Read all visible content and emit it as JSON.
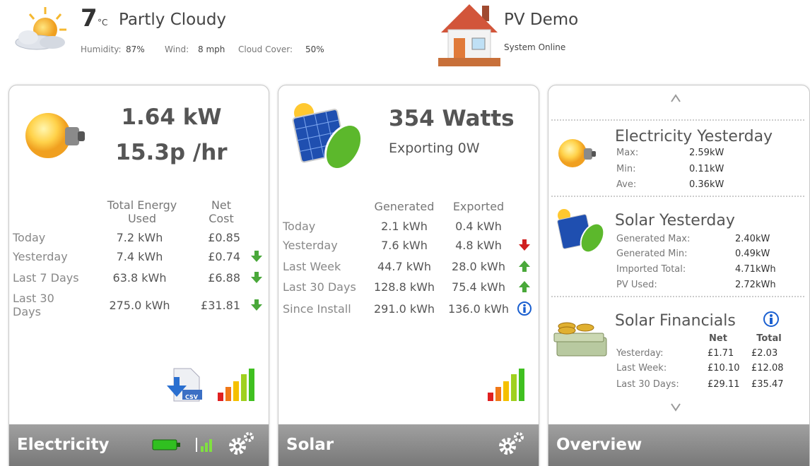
{
  "weather": {
    "temperature": "7",
    "unit": "°C",
    "condition": "Partly Cloudy",
    "humidity": {
      "label": "Humidity:",
      "value": "87%"
    },
    "wind": {
      "label": "Wind:",
      "value": "8 mph"
    },
    "cloud_cover": {
      "label": "Cloud Cover:",
      "value": "50%"
    }
  },
  "system": {
    "name": "PV Demo",
    "status": "System Online"
  },
  "electricity": {
    "power": "1.64 kW",
    "cost_rate": "15.3p /hr",
    "headers": [
      "Total Energy Used",
      "Net Cost"
    ],
    "rows": [
      [
        "Today",
        "7.2 kWh",
        "£0.85"
      ],
      [
        "Yesterday",
        "7.4 kWh",
        "£0.74"
      ],
      [
        "Last 7 Days",
        "63.8 kWh",
        "£6.88"
      ],
      [
        "Last 30 Days",
        "275.0 kWh",
        "£31.81"
      ]
    ],
    "csv_icon": "CSV",
    "footer": "Electricity"
  },
  "solar": {
    "power": "354 Watts",
    "status": "Exporting 0W",
    "headers": [
      "Generated",
      "Exported"
    ],
    "rows": [
      [
        "Today",
        "2.1 kWh",
        "0.4 kWh"
      ],
      [
        "Yesterday",
        "7.6 kWh",
        "4.8 kWh"
      ],
      [
        "Last Week",
        "44.7 kWh",
        "28.0 kWh"
      ],
      [
        "Last 30 Days",
        "128.8 kWh",
        "75.4 kWh"
      ],
      [
        "Since Install",
        "291.0 kWh",
        "136.0 kWh"
      ]
    ],
    "footer": "Solar"
  },
  "overview": {
    "electricity_yesterday": {
      "title": "Electricity Yesterday",
      "rows": [
        [
          "Max:",
          "2.59kW"
        ],
        [
          "Min:",
          "0.11kW"
        ],
        [
          "Ave:",
          "0.36kW"
        ]
      ]
    },
    "solar_yesterday": {
      "title": "Solar Yesterday",
      "rows": [
        [
          "Generated Max:",
          "2.40kW"
        ],
        [
          "Generated Min:",
          "0.49kW"
        ],
        [
          "Imported Total:",
          "4.71kWh"
        ],
        [
          "PV Used:",
          "2.72kWh"
        ]
      ]
    },
    "solar_financials": {
      "title": "Solar Financials",
      "headers": [
        "Net",
        "Total"
      ],
      "rows": [
        [
          "Yesterday:",
          "£1.71",
          "£2.03"
        ],
        [
          "Last Week:",
          "£10.10",
          "£12.08"
        ],
        [
          "Last 30 Days:",
          "£29.11",
          "£35.47"
        ]
      ]
    },
    "footer": "Overview"
  }
}
